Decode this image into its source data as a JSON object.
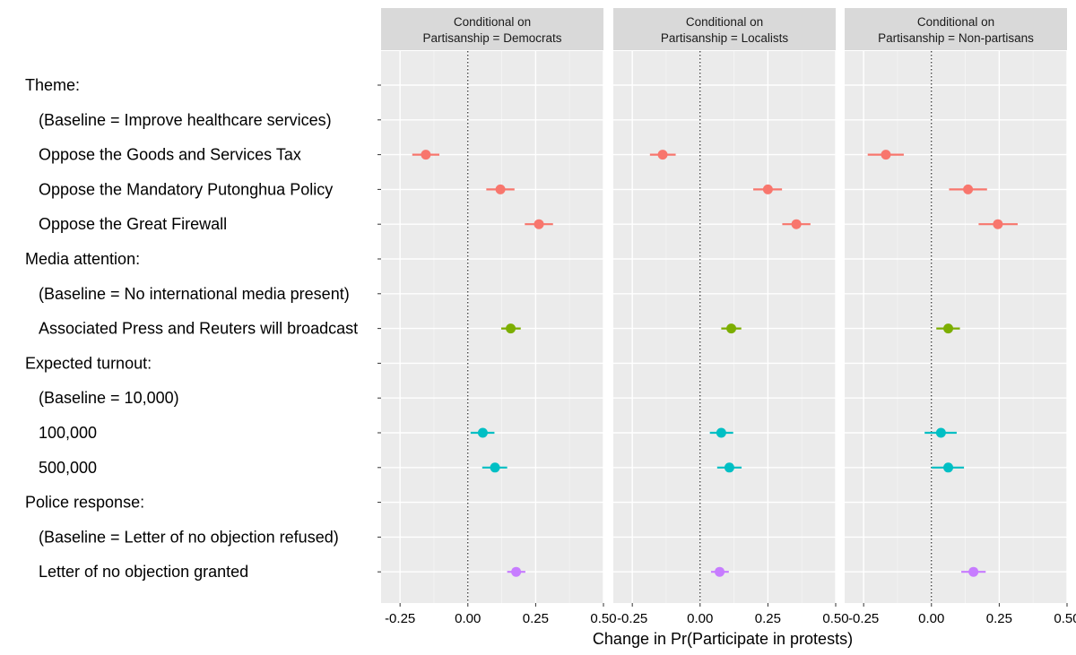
{
  "chart_data": {
    "type": "scatter",
    "subtype": "coefficient-plot-with-error-bars",
    "xlabel": "Change in Pr(Participate in protests)",
    "ylabel": "",
    "xlim": [
      -0.32,
      0.5
    ],
    "x_ticks": [
      -0.25,
      0.0,
      0.25,
      0.5
    ],
    "x_tick_labels": [
      "-0.25",
      "0.00",
      "0.25",
      "0.50"
    ],
    "reference_line": 0,
    "grid": true,
    "legend": "none",
    "row_labels": [
      "Theme:",
      "(Baseline = Improve healthcare services)",
      "Oppose the Goods and Services Tax",
      "Oppose the Mandatory Putonghua Policy",
      "Oppose the Great Firewall",
      "Media attention:",
      "(Baseline = No international media present)",
      "Associated Press and Reuters will broadcast",
      "Expected turnout:",
      "(Baseline = 10,000)",
      "100,000",
      "500,000",
      "Police response:",
      "(Baseline = Letter of no objection refused)",
      "Letter of no objection granted"
    ],
    "row_indent": [
      false,
      true,
      true,
      true,
      true,
      false,
      true,
      true,
      false,
      true,
      true,
      true,
      false,
      true,
      true
    ],
    "group_colors": {
      "Theme": "#F8766D",
      "Media attention": "#7CAE00",
      "Expected turnout": "#00BFC4",
      "Police response": "#C77CFF"
    },
    "panels": [
      {
        "title_line1": "Conditional on",
        "title_line2": "Partisanship = Democrats",
        "points": [
          {
            "row": "Oppose the Goods and Services Tax",
            "group": "Theme",
            "estimate": -0.155,
            "lower": -0.205,
            "upper": -0.105
          },
          {
            "row": "Oppose the Mandatory Putonghua Policy",
            "group": "Theme",
            "estimate": 0.12,
            "lower": 0.068,
            "upper": 0.172
          },
          {
            "row": "Oppose the Great Firewall",
            "group": "Theme",
            "estimate": 0.262,
            "lower": 0.21,
            "upper": 0.314
          },
          {
            "row": "Associated Press and Reuters will broadcast",
            "group": "Media attention",
            "estimate": 0.158,
            "lower": 0.123,
            "upper": 0.195
          },
          {
            "row": "100,000",
            "group": "Expected turnout",
            "estimate": 0.055,
            "lower": 0.01,
            "upper": 0.098
          },
          {
            "row": "500,000",
            "group": "Expected turnout",
            "estimate": 0.1,
            "lower": 0.053,
            "upper": 0.145
          },
          {
            "row": "Letter of no objection granted",
            "group": "Police response",
            "estimate": 0.178,
            "lower": 0.145,
            "upper": 0.212
          }
        ]
      },
      {
        "title_line1": "Conditional on",
        "title_line2": "Partisanship = Localists",
        "points": [
          {
            "row": "Oppose the Goods and Services Tax",
            "group": "Theme",
            "estimate": -0.138,
            "lower": -0.185,
            "upper": -0.09
          },
          {
            "row": "Oppose the Mandatory Putonghua Policy",
            "group": "Theme",
            "estimate": 0.25,
            "lower": 0.196,
            "upper": 0.302
          },
          {
            "row": "Oppose the Great Firewall",
            "group": "Theme",
            "estimate": 0.355,
            "lower": 0.303,
            "upper": 0.407
          },
          {
            "row": "Associated Press and Reuters will broadcast",
            "group": "Media attention",
            "estimate": 0.115,
            "lower": 0.078,
            "upper": 0.152
          },
          {
            "row": "100,000",
            "group": "Expected turnout",
            "estimate": 0.078,
            "lower": 0.036,
            "upper": 0.122
          },
          {
            "row": "500,000",
            "group": "Expected turnout",
            "estimate": 0.108,
            "lower": 0.063,
            "upper": 0.153
          },
          {
            "row": "Letter of no objection granted",
            "group": "Police response",
            "estimate": 0.072,
            "lower": 0.04,
            "upper": 0.106
          }
        ]
      },
      {
        "title_line1": "Conditional on",
        "title_line2": "Partisanship = Non-partisans",
        "points": [
          {
            "row": "Oppose the Goods and Services Tax",
            "group": "Theme",
            "estimate": -0.168,
            "lower": -0.235,
            "upper": -0.102
          },
          {
            "row": "Oppose the Mandatory Putonghua Policy",
            "group": "Theme",
            "estimate": 0.135,
            "lower": 0.065,
            "upper": 0.205
          },
          {
            "row": "Oppose the Great Firewall",
            "group": "Theme",
            "estimate": 0.245,
            "lower": 0.174,
            "upper": 0.318
          },
          {
            "row": "Associated Press and Reuters will broadcast",
            "group": "Media attention",
            "estimate": 0.062,
            "lower": 0.018,
            "upper": 0.105
          },
          {
            "row": "100,000",
            "group": "Expected turnout",
            "estimate": 0.035,
            "lower": -0.025,
            "upper": 0.093
          },
          {
            "row": "500,000",
            "group": "Expected turnout",
            "estimate": 0.062,
            "lower": 0.0,
            "upper": 0.12
          },
          {
            "row": "Letter of no objection granted",
            "group": "Police response",
            "estimate": 0.155,
            "lower": 0.11,
            "upper": 0.2
          }
        ]
      }
    ]
  }
}
